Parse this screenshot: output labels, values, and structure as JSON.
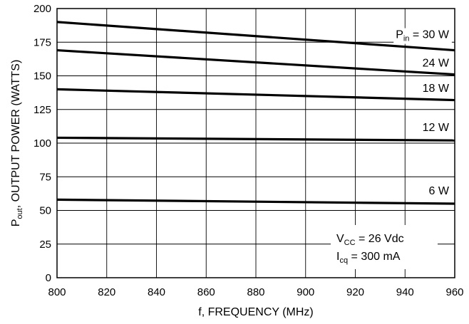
{
  "chart_data": {
    "type": "line",
    "xlabel": "f, FREQUENCY (MHz)",
    "ylabel": {
      "main": "P",
      "sub": "out",
      "rest": ", OUTPUT POWER (WATTS)"
    },
    "xlim": [
      800,
      960
    ],
    "ylim": [
      0,
      200
    ],
    "xticks": [
      "800",
      "820",
      "840",
      "860",
      "880",
      "900",
      "920",
      "940",
      "960"
    ],
    "yticks": [
      "0",
      "25",
      "50",
      "75",
      "100",
      "125",
      "150",
      "175",
      "200"
    ],
    "xtick_values": [
      800,
      820,
      840,
      860,
      880,
      900,
      920,
      940,
      960
    ],
    "ytick_values": [
      0,
      25,
      50,
      75,
      100,
      125,
      150,
      175,
      200
    ],
    "grid": true,
    "series": [
      {
        "name": "30 W",
        "x": [
          800,
          960
        ],
        "y": [
          190,
          169
        ]
      },
      {
        "name": "24 W",
        "x": [
          800,
          960
        ],
        "y": [
          169,
          151
        ]
      },
      {
        "name": "18 W",
        "x": [
          800,
          960
        ],
        "y": [
          140,
          132
        ]
      },
      {
        "name": "12 W",
        "x": [
          800,
          960
        ],
        "y": [
          104,
          102
        ]
      },
      {
        "name": "6 W",
        "x": [
          800,
          960
        ],
        "y": [
          58,
          55
        ]
      }
    ],
    "series_labels": [
      {
        "prefix": "P",
        "sub": "in",
        "text": " = 30 W",
        "x": 960,
        "y": 178
      },
      {
        "prefix": "",
        "sub": "",
        "text": "24 W",
        "x": 960,
        "y": 157
      },
      {
        "prefix": "",
        "sub": "",
        "text": "18 W",
        "x": 960,
        "y": 138
      },
      {
        "prefix": "",
        "sub": "",
        "text": "12 W",
        "x": 960,
        "y": 109
      },
      {
        "prefix": "",
        "sub": "",
        "text": "6 W",
        "x": 960,
        "y": 62
      }
    ],
    "annotations": {
      "vcc": {
        "main": "V",
        "sub": "CC",
        "rest": " = 26 Vdc"
      },
      "icq": {
        "main": "I",
        "sub": "cq",
        "rest": " = 300 mA"
      }
    }
  }
}
